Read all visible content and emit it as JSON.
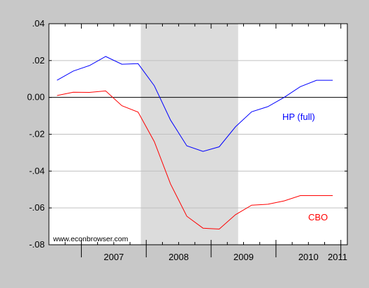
{
  "chart_data": {
    "type": "line",
    "watermark": "www.econbrowser.com",
    "x_tick_labels": [
      "2007",
      "2008",
      "2009",
      "2010",
      "2011"
    ],
    "x_range": [
      2006.5,
      2011.1
    ],
    "y_tick_labels": [
      ".04",
      ".02",
      "0.00",
      "-.02",
      "-.04",
      "-.06",
      "-.08"
    ],
    "y_tick_values": [
      0.04,
      0.02,
      0.0,
      -0.02,
      -0.04,
      -0.06,
      -0.08
    ],
    "ylim": [
      -0.08,
      0.04
    ],
    "grid": true,
    "zero_line": true,
    "shaded_regions": [
      {
        "start": 2007.917,
        "end": 2009.417
      }
    ],
    "series": [
      {
        "name": "HP (full)",
        "color": "#0000ff",
        "x": [
          2006.625,
          2006.875,
          2007.125,
          2007.375,
          2007.625,
          2007.875,
          2008.125,
          2008.375,
          2008.625,
          2008.875,
          2009.125,
          2009.375,
          2009.625,
          2009.875,
          2010.125,
          2010.375,
          2010.625,
          2010.875
        ],
        "values": [
          0.0093,
          0.0143,
          0.0173,
          0.0222,
          0.018,
          0.0183,
          0.0063,
          -0.0123,
          -0.0263,
          -0.0293,
          -0.0268,
          -0.016,
          -0.0078,
          -0.005,
          0.0,
          0.0058,
          0.0093,
          0.0093
        ]
      },
      {
        "name": "CBO",
        "color": "#ff0000",
        "x": [
          2006.625,
          2006.875,
          2007.125,
          2007.375,
          2007.625,
          2007.875,
          2008.125,
          2008.375,
          2008.625,
          2008.875,
          2009.125,
          2009.375,
          2009.625,
          2009.875,
          2010.125,
          2010.375,
          2010.625,
          2010.875
        ],
        "values": [
          0.001,
          0.0028,
          0.0027,
          0.0035,
          -0.0045,
          -0.008,
          -0.024,
          -0.047,
          -0.0645,
          -0.071,
          -0.0715,
          -0.0637,
          -0.0585,
          -0.058,
          -0.0562,
          -0.0533,
          -0.0533,
          -0.0533
        ]
      }
    ],
    "annotations": [
      {
        "text": "HP (full)",
        "series": 0
      },
      {
        "text": "CBO",
        "series": 1
      }
    ]
  }
}
